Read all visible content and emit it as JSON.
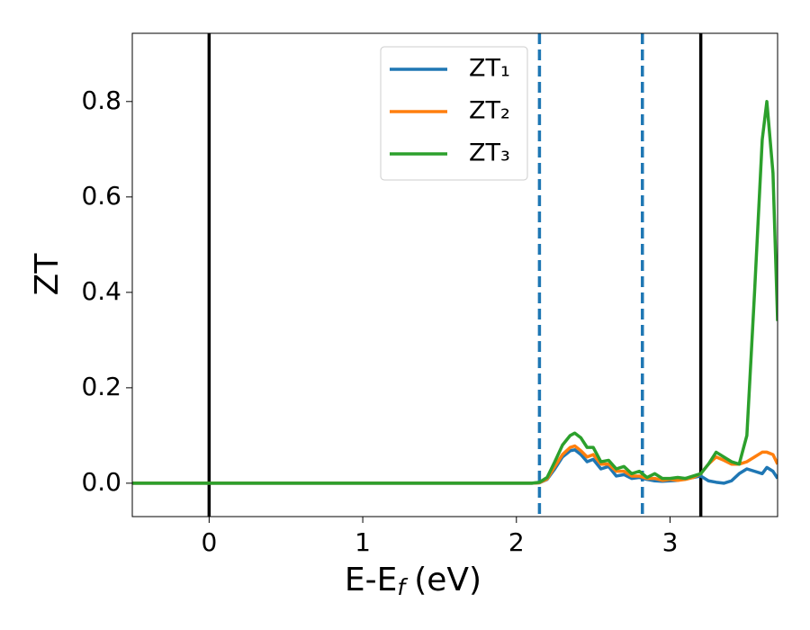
{
  "chart_data": {
    "type": "line",
    "xlabel": {
      "base": "E-E",
      "sub": "f",
      "unit": "(eV)"
    },
    "ylabel": "ZT",
    "x": [
      -0.5,
      0,
      1,
      1.5,
      2.0,
      2.1,
      2.15,
      2.2,
      2.25,
      2.3,
      2.35,
      2.38,
      2.42,
      2.46,
      2.5,
      2.55,
      2.6,
      2.65,
      2.7,
      2.75,
      2.8,
      2.85,
      2.9,
      2.95,
      3.0,
      3.05,
      3.1,
      3.15,
      3.2,
      3.25,
      3.3,
      3.35,
      3.4,
      3.45,
      3.5,
      3.55,
      3.6,
      3.63,
      3.67,
      3.7
    ],
    "series": [
      {
        "name": "ZT₁",
        "color": "#1f77b4",
        "values": [
          0,
          0,
          0,
          0,
          0,
          0,
          0.001,
          0.008,
          0.03,
          0.055,
          0.068,
          0.07,
          0.06,
          0.045,
          0.05,
          0.03,
          0.035,
          0.015,
          0.018,
          0.01,
          0.012,
          0.008,
          0.005,
          0.004,
          0.005,
          0.006,
          0.01,
          0.012,
          0.015,
          0.005,
          0.002,
          0.0,
          0.005,
          0.02,
          0.03,
          0.025,
          0.02,
          0.033,
          0.025,
          0.01
        ]
      },
      {
        "name": "ZT₂",
        "color": "#ff7f0e",
        "values": [
          0,
          0,
          0,
          0,
          0,
          0,
          0.001,
          0.009,
          0.035,
          0.06,
          0.075,
          0.078,
          0.068,
          0.055,
          0.06,
          0.04,
          0.04,
          0.025,
          0.025,
          0.015,
          0.015,
          0.01,
          0.01,
          0.006,
          0.008,
          0.006,
          0.008,
          0.012,
          0.02,
          0.04,
          0.055,
          0.048,
          0.04,
          0.04,
          0.045,
          0.055,
          0.065,
          0.065,
          0.06,
          0.04
        ]
      },
      {
        "name": "ZT₃",
        "color": "#2ca02c",
        "values": [
          0,
          0,
          0,
          0,
          0,
          0,
          0.002,
          0.012,
          0.045,
          0.08,
          0.1,
          0.105,
          0.095,
          0.075,
          0.075,
          0.045,
          0.048,
          0.03,
          0.035,
          0.02,
          0.025,
          0.012,
          0.02,
          0.01,
          0.01,
          0.012,
          0.01,
          0.015,
          0.02,
          0.04,
          0.065,
          0.055,
          0.045,
          0.04,
          0.1,
          0.4,
          0.72,
          0.8,
          0.65,
          0.34
        ]
      }
    ],
    "vlines": [
      {
        "x": 0,
        "color": "#000000",
        "style": "solid"
      },
      {
        "x": 3.2,
        "color": "#000000",
        "style": "solid"
      },
      {
        "x": 2.15,
        "color": "#1f77b4",
        "style": "dashed"
      },
      {
        "x": 2.82,
        "color": "#1f77b4",
        "style": "dashed"
      }
    ],
    "xlim": [
      -0.5,
      3.7
    ],
    "ylim": [
      -0.07,
      0.943
    ],
    "xticks": [
      0,
      1,
      2,
      3
    ],
    "yticks": [
      {
        "value": 0,
        "label": "0.0"
      },
      0.2,
      0.4,
      0.6,
      0.8
    ],
    "legend": "top-center"
  }
}
